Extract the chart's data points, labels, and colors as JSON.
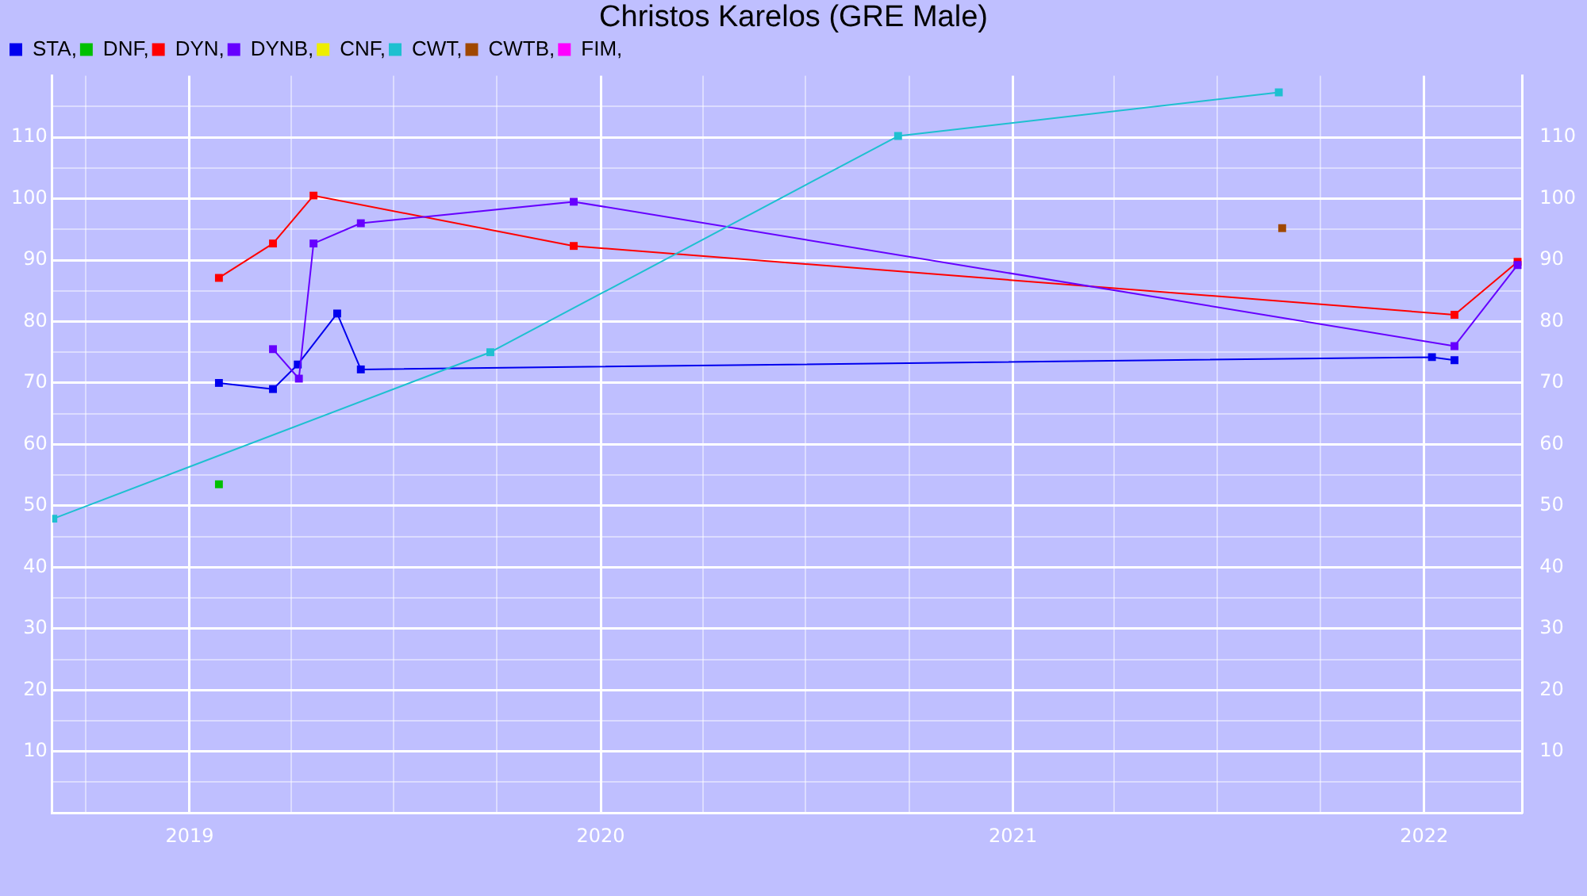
{
  "chart_data": {
    "type": "line",
    "title": "Christos Karelos (GRE Male)",
    "series": [
      {
        "name": "STA,",
        "color": "#0000ee",
        "x": [
          "2019-01-27",
          "2019-03-16",
          "2019-04-07",
          "2019-05-12",
          "2019-06-02",
          "2022-01-08",
          "2022-01-28"
        ],
        "values": [
          70,
          69,
          73,
          81.3,
          72.2,
          74.2,
          73.7
        ]
      },
      {
        "name": "DNF,",
        "color": "#00c000",
        "x": [
          "2019-01-27"
        ],
        "values": [
          53.5
        ]
      },
      {
        "name": "DYN,",
        "color": "#ff0000",
        "x": [
          "2019-01-27",
          "2019-03-16",
          "2019-04-21",
          "2019-12-08",
          "2022-01-28",
          "2022-03-25"
        ],
        "values": [
          87.1,
          92.7,
          100.5,
          92.3,
          81.1,
          89.7
        ]
      },
      {
        "name": "DYNB,",
        "color": "#6600ff",
        "x": [
          "2019-03-16",
          "2019-04-08",
          "2019-04-21",
          "2019-06-02",
          "2019-12-08",
          "2022-01-28",
          "2022-03-25"
        ],
        "values": [
          75.5,
          70.7,
          92.7,
          96,
          99.5,
          76,
          89.2
        ]
      },
      {
        "name": "CNF,",
        "color": "#eeee00"
      },
      {
        "name": "CWT,",
        "color": "#1ec0d0",
        "x": [
          "2018-09-02",
          "2019-09-25",
          "2020-09-21",
          "2021-08-25"
        ],
        "values": [
          47.9,
          75,
          110.2,
          117.3
        ]
      },
      {
        "name": "CWTB,",
        "color": "#a04800",
        "x": [
          "2021-08-28"
        ],
        "values": [
          95.2
        ]
      },
      {
        "name": "FIM,",
        "color": "#ff00ff"
      }
    ],
    "xlim": [
      "2018-09-01",
      "2022-03-29"
    ],
    "xticks": [
      {
        "value": "2018-10-01",
        "label": null
      },
      {
        "value": "2019-01-01",
        "label": "2019"
      },
      {
        "value": "2019-04-01",
        "label": null
      },
      {
        "value": "2019-07-01",
        "label": null
      },
      {
        "value": "2019-10-01",
        "label": null
      },
      {
        "value": "2020-01-01",
        "label": "2020"
      },
      {
        "value": "2020-04-01",
        "label": null
      },
      {
        "value": "2020-07-01",
        "label": null
      },
      {
        "value": "2020-10-01",
        "label": null
      },
      {
        "value": "2021-01-01",
        "label": "2021"
      },
      {
        "value": "2021-04-01",
        "label": null
      },
      {
        "value": "2021-07-01",
        "label": null
      },
      {
        "value": "2021-10-01",
        "label": null
      },
      {
        "value": "2022-01-01",
        "label": "2022"
      }
    ],
    "ylim": [
      0,
      120
    ],
    "yticks": [
      {
        "value": 5,
        "label": null
      },
      10,
      {
        "value": 15,
        "label": null
      },
      20,
      {
        "value": 25,
        "label": null
      },
      30,
      {
        "value": 35,
        "label": null
      },
      40,
      {
        "value": 45,
        "label": null
      },
      50,
      {
        "value": 55,
        "label": null
      },
      60,
      {
        "value": 65,
        "label": null
      },
      70,
      {
        "value": 75,
        "label": null
      },
      80,
      {
        "value": 85,
        "label": null
      },
      90,
      {
        "value": 95,
        "label": null
      },
      100,
      {
        "value": 105,
        "label": null
      },
      110,
      {
        "value": 115,
        "label": null
      }
    ],
    "y2lim": [
      0,
      120
    ],
    "y2ticks": [
      10,
      20,
      30,
      40,
      50,
      60,
      70,
      80,
      90,
      100,
      110
    ],
    "grid": true,
    "legend": "top left",
    "marker": "square",
    "line_style": "solid"
  }
}
